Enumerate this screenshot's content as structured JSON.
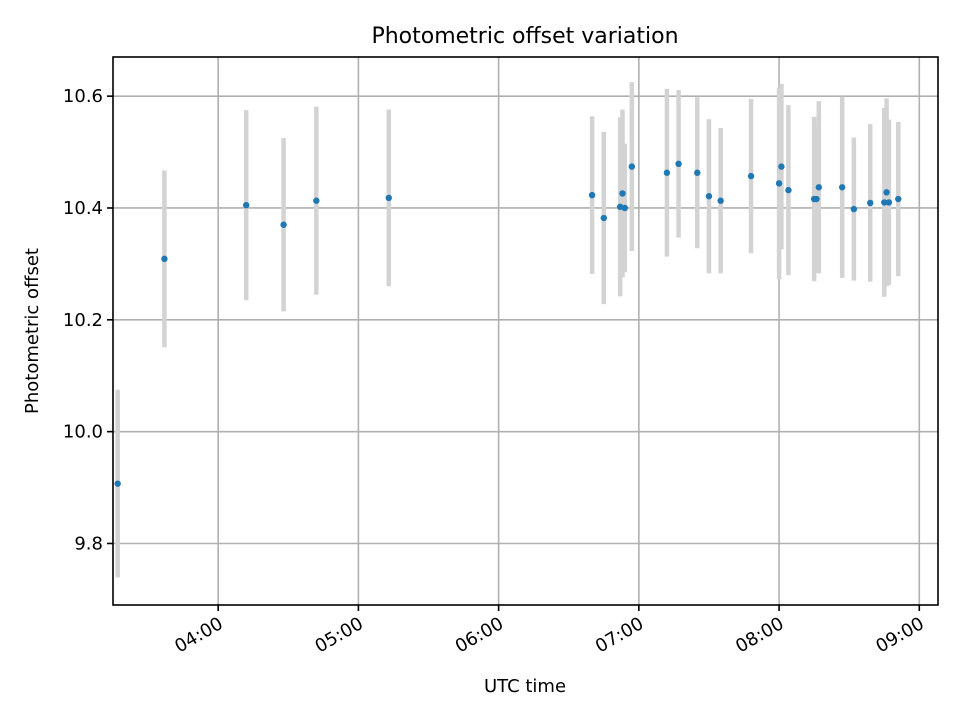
{
  "chart_data": {
    "type": "scatter",
    "title": "Photometric offset variation",
    "xlabel": "UTC time",
    "ylabel": "Photometric offset",
    "x_axis_kind": "time",
    "x_range": [
      "03:15",
      "09:08"
    ],
    "x_ticks": [
      "04:00",
      "05:00",
      "06:00",
      "07:00",
      "08:00",
      "09:00"
    ],
    "ylim": [
      9.69,
      10.67
    ],
    "y_ticks": [
      9.8,
      10.0,
      10.2,
      10.4,
      10.6
    ],
    "grid": true,
    "point_color": "#1f77b4",
    "errorbar_color": "#d3d3d3",
    "points": [
      {
        "x": "03:17",
        "y": 9.907,
        "err": 0.168
      },
      {
        "x": "03:37",
        "y": 10.309,
        "err": 0.158
      },
      {
        "x": "04:12",
        "y": 10.405,
        "err": 0.17
      },
      {
        "x": "04:28",
        "y": 10.37,
        "err": 0.155
      },
      {
        "x": "04:42",
        "y": 10.413,
        "err": 0.168
      },
      {
        "x": "05:13",
        "y": 10.418,
        "err": 0.158
      },
      {
        "x": "06:40",
        "y": 10.423,
        "err": 0.141
      },
      {
        "x": "06:45",
        "y": 10.382,
        "err": 0.154
      },
      {
        "x": "06:52",
        "y": 10.402,
        "err": 0.16
      },
      {
        "x": "06:53",
        "y": 10.426,
        "err": 0.15
      },
      {
        "x": "06:54",
        "y": 10.4,
        "err": 0.115
      },
      {
        "x": "06:57",
        "y": 10.474,
        "err": 0.151
      },
      {
        "x": "07:12",
        "y": 10.463,
        "err": 0.15
      },
      {
        "x": "07:17",
        "y": 10.479,
        "err": 0.132
      },
      {
        "x": "07:25",
        "y": 10.463,
        "err": 0.135
      },
      {
        "x": "07:30",
        "y": 10.421,
        "err": 0.138
      },
      {
        "x": "07:35",
        "y": 10.413,
        "err": 0.13
      },
      {
        "x": "07:48",
        "y": 10.457,
        "err": 0.138
      },
      {
        "x": "08:00",
        "y": 10.444,
        "err": 0.171
      },
      {
        "x": "08:01",
        "y": 10.474,
        "err": 0.148
      },
      {
        "x": "08:04",
        "y": 10.432,
        "err": 0.152
      },
      {
        "x": "08:15",
        "y": 10.416,
        "err": 0.147
      },
      {
        "x": "08:16",
        "y": 10.416,
        "err": 0.13
      },
      {
        "x": "08:17",
        "y": 10.437,
        "err": 0.154
      },
      {
        "x": "08:27",
        "y": 10.437,
        "err": 0.162
      },
      {
        "x": "08:32",
        "y": 10.398,
        "err": 0.128
      },
      {
        "x": "08:39",
        "y": 10.409,
        "err": 0.141
      },
      {
        "x": "08:45",
        "y": 10.41,
        "err": 0.169
      },
      {
        "x": "08:46",
        "y": 10.428,
        "err": 0.168
      },
      {
        "x": "08:47",
        "y": 10.41,
        "err": 0.148
      },
      {
        "x": "08:51",
        "y": 10.416,
        "err": 0.138
      }
    ]
  }
}
